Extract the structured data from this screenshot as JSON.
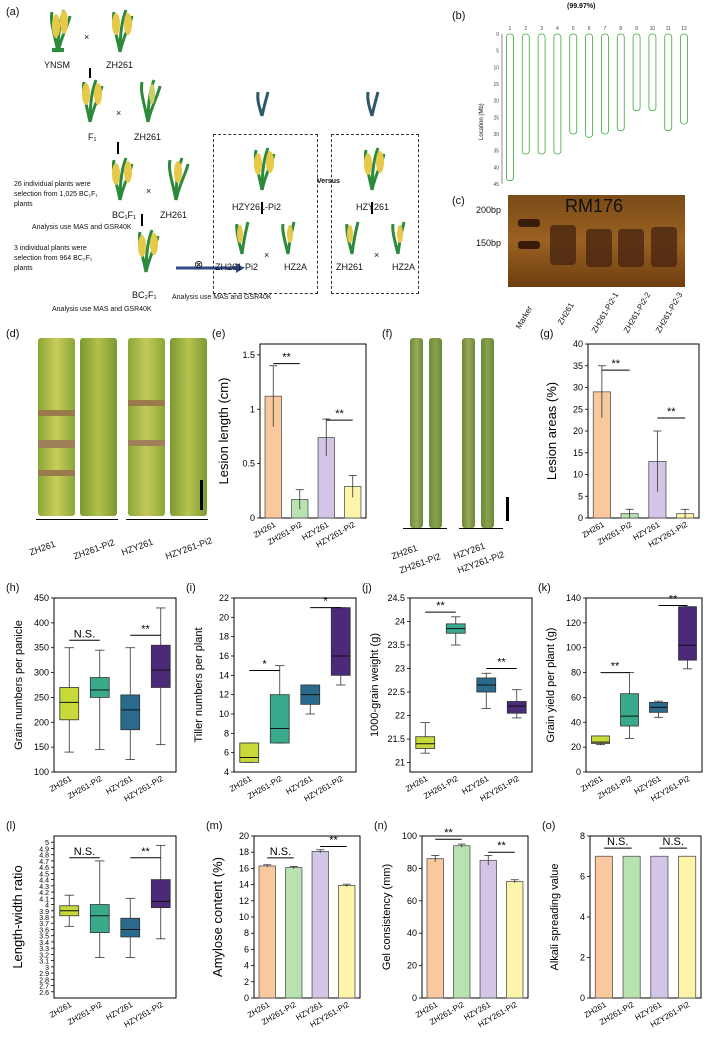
{
  "figure": {
    "panels": {
      "a": "(a)",
      "b": "(b)",
      "c": "(c)",
      "d": "(d)",
      "e": "(e)",
      "f": "(f)",
      "g": "(g)",
      "h": "(h)",
      "i": "(i)",
      "j": "(j)",
      "k": "(k)",
      "l": "(l)",
      "m": "(m)",
      "n": "(n)",
      "o": "(o)"
    },
    "a": {
      "ynsm": "YNSM",
      "zh261": "ZH261",
      "x": "×",
      "f1": "F₁",
      "zh261b": "ZH261",
      "note1": "26 individual plants were selection from 1,025 BC₁F₁ plants",
      "bc1f1": "BC₁F₁",
      "zh261c": "ZH261",
      "analysis1": "Analysis use MAS and GSR40K",
      "note2": "3 individual plants were selection from 964 BC₂F₁ plants",
      "bc2f1": "BC₂F₁",
      "analysis2": "Analysis use MAS and GSR40K",
      "selfing": "⊗",
      "hzy261pi2": "HZY261-Pi2",
      "zh261pi2": "ZH261-Pi2",
      "hz2a": "HZ2A",
      "analysis3": "Analysis use MAS and GSR40K",
      "versus": "Versus",
      "hzy261": "HZY261",
      "zh261d": "ZH261",
      "hz2a2": "HZ2A"
    },
    "b": {
      "pct": "(99.97%)",
      "ylabel": "Location (Mb)"
    },
    "c": {
      "title": "RM176",
      "bp200": "200bp",
      "bp150": "150bp",
      "lanes": [
        "Marker",
        "ZH261",
        "ZH261-Pi2-1",
        "ZH261-Pi2-2",
        "ZH261-Pi2-3"
      ]
    },
    "d": {
      "labels": [
        "ZH261",
        "ZH261-Pi2",
        "HZY261",
        "HZY261-Pi2"
      ]
    },
    "f": {
      "labels": [
        "ZH261",
        "ZH261-Pi2",
        "HZY261",
        "HZY261-Pi2"
      ]
    },
    "sig": {
      "ss": "**",
      "s": "*",
      "ns": "N.S."
    }
  },
  "chart_data": [
    {
      "id": "b",
      "type": "bar",
      "title": "(99.97%)",
      "xlabel": "",
      "ylabel": "Location (Mb)",
      "categories": [
        "1",
        "2",
        "3",
        "4",
        "5",
        "6",
        "7",
        "8",
        "9",
        "10",
        "11",
        "12"
      ],
      "values": [
        44,
        36,
        36,
        36,
        30,
        31,
        30,
        29,
        23,
        23,
        29,
        27
      ],
      "ylim": [
        0,
        45
      ],
      "yticks": [
        0,
        5,
        10,
        15,
        20,
        25,
        30,
        35,
        40,
        45
      ]
    },
    {
      "id": "e",
      "type": "bar",
      "ylabel": "Lesion length (cm)",
      "ylim": [
        0,
        1.6
      ],
      "yticks": [
        0.0,
        0.5,
        1.0,
        1.5
      ],
      "categories": [
        "ZH261",
        "ZH261-Pi2",
        "HZY261",
        "HZY261-Pi2"
      ],
      "values": [
        1.12,
        0.17,
        0.74,
        0.29
      ],
      "errors": [
        0.28,
        0.09,
        0.17,
        0.1
      ],
      "colors": [
        "#f9c99d",
        "#b8e3b0",
        "#d3c5e6",
        "#fcf4a8"
      ]
    },
    {
      "id": "g",
      "type": "bar",
      "ylabel": "Lesion areas (%)",
      "ylim": [
        0,
        40
      ],
      "yticks": [
        0,
        5,
        10,
        15,
        20,
        25,
        30,
        35,
        40
      ],
      "categories": [
        "ZH261",
        "ZH261-Pi2",
        "HZY261",
        "HZY261-Pi2"
      ],
      "values": [
        29,
        1,
        13,
        1
      ],
      "errors": [
        6,
        1,
        7,
        1
      ],
      "colors": [
        "#f9c99d",
        "#b8e3b0",
        "#d3c5e6",
        "#fcf4a8"
      ]
    },
    {
      "id": "h",
      "type": "box",
      "ylabel": "Grain numbers per panicle",
      "ylim": [
        100,
        450
      ],
      "yticks": [
        100,
        150,
        200,
        250,
        300,
        350,
        400,
        450
      ],
      "categories": [
        "ZH261",
        "ZH261-Pi2",
        "HZY261",
        "HZY261-Pi2"
      ],
      "boxes": [
        [
          140,
          205,
          240,
          270,
          350
        ],
        [
          145,
          250,
          265,
          290,
          345
        ],
        [
          125,
          185,
          225,
          255,
          350
        ],
        [
          155,
          270,
          305,
          355,
          430
        ]
      ],
      "colors": [
        "#c8d93a",
        "#3aaa8c",
        "#2a6a8c",
        "#4b2a7a"
      ]
    },
    {
      "id": "i",
      "type": "box",
      "ylabel": "Tiller numbers per plant",
      "ylim": [
        4,
        22
      ],
      "yticks": [
        4,
        6,
        8,
        10,
        12,
        14,
        16,
        18,
        20,
        22
      ],
      "categories": [
        "ZH261",
        "ZH261-Pi2",
        "HZY261",
        "HZY261-Pi2"
      ],
      "boxes": [
        [
          5,
          5,
          5.5,
          7,
          7
        ],
        [
          7,
          7,
          8.5,
          12,
          15
        ],
        [
          10,
          11,
          12,
          13,
          13
        ],
        [
          13,
          14,
          16,
          21,
          21
        ]
      ],
      "colors": [
        "#c8d93a",
        "#3aaa8c",
        "#2a6a8c",
        "#4b2a7a"
      ]
    },
    {
      "id": "j",
      "type": "box",
      "ylabel": "1000-grain weight (g)",
      "ylim": [
        20.8,
        24.5
      ],
      "yticks": [
        21.0,
        21.5,
        22.0,
        22.5,
        23.0,
        23.5,
        24.0,
        24.5
      ],
      "categories": [
        "ZH261",
        "ZH261-Pi2",
        "HZY261",
        "HZY261-Pi2"
      ],
      "boxes": [
        [
          21.2,
          21.3,
          21.4,
          21.55,
          21.85
        ],
        [
          23.5,
          23.75,
          23.85,
          23.95,
          24.1
        ],
        [
          22.15,
          22.5,
          22.65,
          22.8,
          22.9
        ],
        [
          21.95,
          22.05,
          22.2,
          22.3,
          22.55
        ]
      ],
      "colors": [
        "#c8d93a",
        "#3aaa8c",
        "#2a6a8c",
        "#4b2a7a"
      ]
    },
    {
      "id": "k",
      "type": "box",
      "ylabel": "Grain yield per plant (g)",
      "ylim": [
        0,
        140
      ],
      "yticks": [
        0,
        20,
        40,
        60,
        80,
        100,
        120,
        140
      ],
      "categories": [
        "ZH261",
        "ZH261-Pi2",
        "HZY261",
        "HZY261-Pi2"
      ],
      "boxes": [
        [
          22,
          23,
          24,
          29,
          29
        ],
        [
          27,
          37,
          45,
          63,
          80
        ],
        [
          44,
          48,
          52,
          56,
          57
        ],
        [
          83,
          90,
          102,
          133,
          133
        ]
      ],
      "colors": [
        "#c8d93a",
        "#3aaa8c",
        "#2a6a8c",
        "#4b2a7a"
      ]
    },
    {
      "id": "l",
      "type": "box",
      "ylabel": "Length-width ratio",
      "ylim": [
        2.5,
        5.1
      ],
      "yticks": [
        2.6,
        2.7,
        2.8,
        2.9,
        3.0,
        3.1,
        3.2,
        3.3,
        3.4,
        3.5,
        3.6,
        3.7,
        3.8,
        3.9,
        4.0,
        4.1,
        4.2,
        4.3,
        4.4,
        4.5,
        4.6,
        4.7,
        4.8,
        4.9,
        5.0
      ],
      "categories": [
        "ZH261",
        "ZH261-Pi2",
        "HZY261",
        "HZY261-Pi2"
      ],
      "boxes": [
        [
          3.65,
          3.82,
          3.9,
          3.98,
          4.15
        ],
        [
          3.15,
          3.55,
          3.82,
          4.0,
          4.7
        ],
        [
          3.15,
          3.48,
          3.6,
          3.78,
          4.1
        ],
        [
          3.45,
          3.95,
          4.05,
          4.4,
          4.95
        ]
      ],
      "colors": [
        "#c8d93a",
        "#3aaa8c",
        "#2a6a8c",
        "#4b2a7a"
      ]
    },
    {
      "id": "m",
      "type": "bar",
      "ylabel": "Amylose content (%)",
      "ylim": [
        0,
        20
      ],
      "yticks": [
        0,
        2,
        4,
        6,
        8,
        10,
        12,
        14,
        16,
        18,
        20
      ],
      "categories": [
        "ZH261",
        "ZH261-Pi2",
        "HZY261",
        "HZY261-Pi2"
      ],
      "values": [
        16.3,
        16.1,
        18.1,
        13.9
      ],
      "errors": [
        0.15,
        0.15,
        0.2,
        0.15
      ],
      "colors": [
        "#f9c99d",
        "#b8e3b0",
        "#d3c5e6",
        "#fcf4a8"
      ]
    },
    {
      "id": "n",
      "type": "bar",
      "ylabel": "Gel consistency (mm)",
      "ylim": [
        0,
        100
      ],
      "yticks": [
        0,
        20,
        40,
        60,
        80,
        100
      ],
      "categories": [
        "ZH261",
        "ZH261-Pi2",
        "HZY261",
        "HZY261-Pi2"
      ],
      "values": [
        86,
        94,
        85,
        72
      ],
      "errors": [
        2,
        1,
        3,
        1
      ],
      "colors": [
        "#f9c99d",
        "#b8e3b0",
        "#d3c5e6",
        "#fcf4a8"
      ]
    },
    {
      "id": "o",
      "type": "bar",
      "ylabel": "Alkali spreading value",
      "ylim": [
        0,
        8
      ],
      "yticks": [
        0,
        2,
        4,
        6,
        8
      ],
      "categories": [
        "ZH261",
        "ZH261-Pi2",
        "HZY261",
        "HZY261-Pi2"
      ],
      "values": [
        7,
        7,
        7,
        7
      ],
      "errors": [
        0,
        0,
        0,
        0
      ],
      "colors": [
        "#f9c99d",
        "#b8e3b0",
        "#d3c5e6",
        "#fcf4a8"
      ]
    }
  ]
}
